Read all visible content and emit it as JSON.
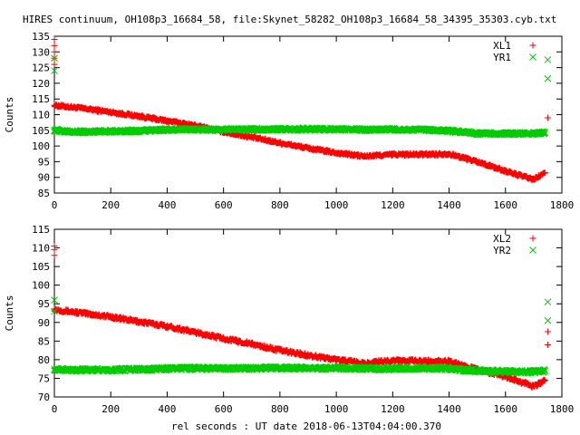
{
  "title": "HIRES continuum, OH108p3_16684_58, file:Skynet_58282_OH108p3_16684_58_34395_35303.cyb.txt",
  "xlabel": "rel seconds : UT date 2018-06-13T04:04:00.370",
  "colors": {
    "red": "#ff0000",
    "green": "#00cc00"
  },
  "chart_data": [
    {
      "type": "scatter",
      "ylabel": "Counts",
      "xlim": [
        0,
        1800
      ],
      "ylim": [
        85,
        135
      ],
      "xticks": [
        0,
        200,
        400,
        600,
        800,
        1000,
        1200,
        1400,
        1600,
        1800
      ],
      "yticks": [
        85,
        90,
        95,
        100,
        105,
        110,
        115,
        120,
        125,
        130,
        135
      ],
      "legend_position": "top-right",
      "series": [
        {
          "name": "XL1",
          "marker": "+",
          "color": "#ff0000",
          "x": [
            0,
            100,
            200,
            300,
            400,
            500,
            600,
            700,
            800,
            900,
            1000,
            1100,
            1200,
            1300,
            1400,
            1500,
            1600,
            1700,
            1740
          ],
          "y": [
            113,
            112,
            110.8,
            109.5,
            108,
            106.5,
            104.5,
            102.8,
            101,
            99.3,
            97.8,
            96.7,
            97.3,
            97.3,
            97.5,
            95,
            92,
            89.3,
            91.5
          ],
          "outliers": [
            [
              0,
              134
            ],
            [
              0,
              132
            ],
            [
              0,
              130
            ],
            [
              0,
              128
            ],
            [
              0,
              126
            ],
            [
              1750,
              109
            ]
          ]
        },
        {
          "name": "YR1",
          "marker": "x",
          "color": "#00cc00",
          "x": [
            0,
            100,
            200,
            300,
            400,
            500,
            600,
            700,
            800,
            900,
            1000,
            1100,
            1200,
            1300,
            1400,
            1500,
            1600,
            1700,
            1740
          ],
          "y": [
            105,
            104.5,
            104.7,
            104.8,
            105.2,
            105.3,
            105.2,
            105.3,
            105.3,
            105.4,
            105.3,
            105.2,
            105.3,
            105.2,
            104.8,
            104,
            104,
            104,
            104.3
          ],
          "outliers": [
            [
              0,
              128
            ],
            [
              0,
              124
            ],
            [
              1750,
              127.5
            ],
            [
              1750,
              121.5
            ]
          ]
        }
      ]
    },
    {
      "type": "scatter",
      "ylabel": "Counts",
      "xlim": [
        0,
        1800
      ],
      "ylim": [
        70,
        115
      ],
      "xticks": [
        0,
        200,
        400,
        600,
        800,
        1000,
        1200,
        1400,
        1600,
        1800
      ],
      "yticks": [
        70,
        75,
        80,
        85,
        90,
        95,
        100,
        105,
        110,
        115
      ],
      "legend_position": "top-right",
      "series": [
        {
          "name": "XL2",
          "marker": "+",
          "color": "#ff0000",
          "x": [
            0,
            100,
            200,
            300,
            400,
            500,
            600,
            700,
            800,
            900,
            1000,
            1100,
            1200,
            1300,
            1400,
            1500,
            1600,
            1700,
            1740
          ],
          "y": [
            93.5,
            92.5,
            91.5,
            90.2,
            89,
            87.3,
            85.7,
            84.2,
            82.5,
            81.2,
            80,
            79,
            79.8,
            79.6,
            79.6,
            77.3,
            75.5,
            72.8,
            74.5
          ],
          "outliers": [
            [
              0,
              110.5
            ],
            [
              0,
              109.5
            ],
            [
              0,
              108
            ],
            [
              1750,
              87.5
            ],
            [
              1750,
              84
            ]
          ]
        },
        {
          "name": "YR2",
          "marker": "x",
          "color": "#00cc00",
          "x": [
            0,
            100,
            200,
            300,
            400,
            500,
            600,
            700,
            800,
            900,
            1000,
            1100,
            1200,
            1300,
            1400,
            1500,
            1600,
            1700,
            1740
          ],
          "y": [
            77.5,
            77.2,
            77.3,
            77.4,
            77.6,
            77.7,
            77.6,
            77.7,
            77.8,
            77.7,
            77.7,
            77.6,
            77.6,
            77.7,
            77.6,
            77,
            76.8,
            76.8,
            77
          ],
          "outliers": [
            [
              0,
              96
            ],
            [
              0,
              93
            ],
            [
              1750,
              95.5
            ],
            [
              1750,
              90.5
            ]
          ]
        }
      ]
    }
  ]
}
